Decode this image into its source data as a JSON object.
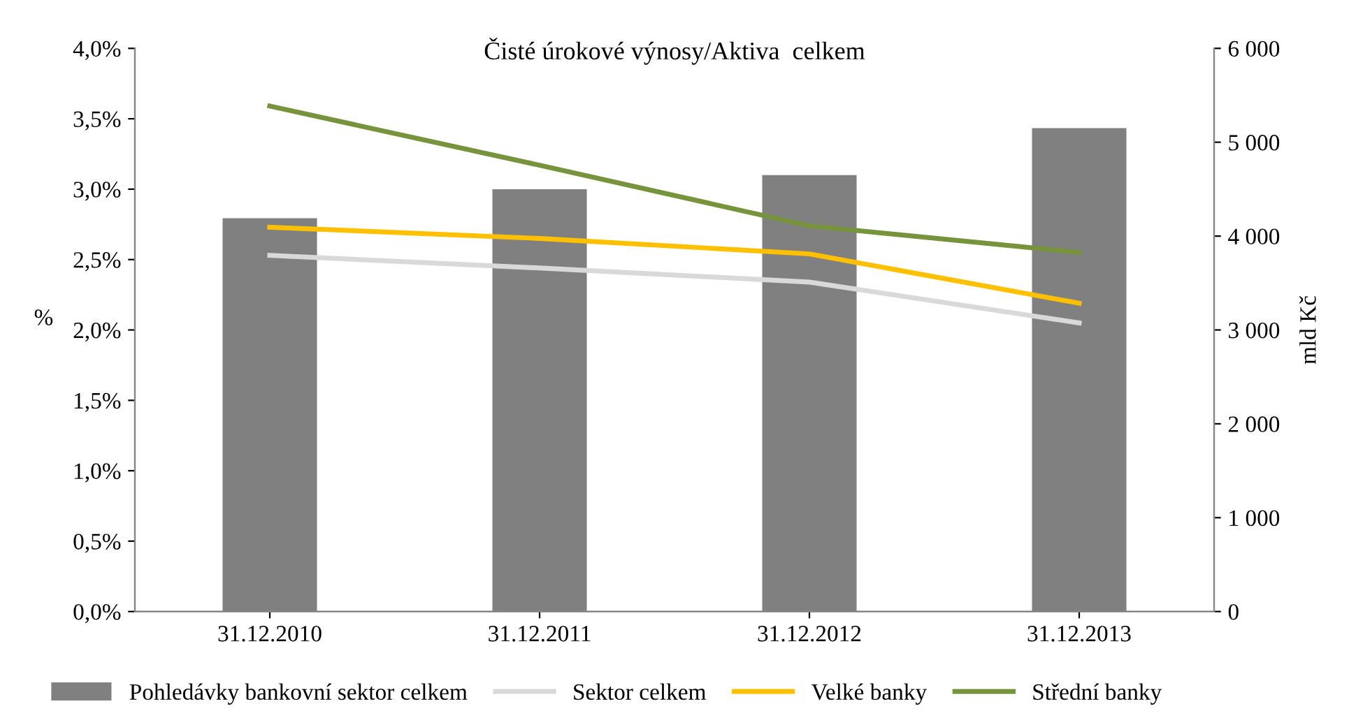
{
  "chart_data": {
    "type": "bar",
    "title": "Čisté úrokové výnosy/Aktiva  celkem",
    "categories": [
      "31.12.2010",
      "31.12.2011",
      "31.12.2012",
      "31.12.2013"
    ],
    "ylabel": "%",
    "y2label": "mld Kč",
    "ylim": [
      0,
      4.0
    ],
    "yticks": [
      {
        "value": 0,
        "label": "0,0%"
      },
      {
        "value": 0.5,
        "label": "0,5%"
      },
      {
        "value": 1.0,
        "label": "1,0%"
      },
      {
        "value": 1.5,
        "label": "1,5%"
      },
      {
        "value": 2.0,
        "label": "2,0%"
      },
      {
        "value": 2.5,
        "label": "2,5%"
      },
      {
        "value": 3.0,
        "label": "3,0%"
      },
      {
        "value": 3.5,
        "label": "3,5%"
      },
      {
        "value": 4.0,
        "label": "4,0%"
      }
    ],
    "y2lim": [
      0,
      6000
    ],
    "y2ticks": [
      {
        "value": 0,
        "label": "0"
      },
      {
        "value": 1000,
        "label": "1 000"
      },
      {
        "value": 2000,
        "label": "2 000"
      },
      {
        "value": 3000,
        "label": "3 000"
      },
      {
        "value": 4000,
        "label": "4 000"
      },
      {
        "value": 5000,
        "label": "5 000"
      },
      {
        "value": 6000,
        "label": "6 000"
      }
    ],
    "series": [
      {
        "name": "Pohledávky bankovní sektor celkem",
        "axis": "y2",
        "color": "#808080",
        "values": [
          4190,
          4500,
          4650,
          5150
        ]
      },
      {
        "name": "Sektor celkem",
        "type": "line",
        "color": "#d9d9d9",
        "values": [
          2.53,
          2.44,
          2.34,
          2.05
        ]
      },
      {
        "name": "Velké banky",
        "type": "line",
        "color": "#ffc000",
        "values": [
          2.73,
          2.65,
          2.54,
          2.19
        ]
      },
      {
        "name": "Střední banky",
        "type": "line",
        "color": "#77933c",
        "values": [
          3.59,
          3.17,
          2.74,
          2.55
        ]
      }
    ],
    "legend": "bottom",
    "grid": false
  }
}
